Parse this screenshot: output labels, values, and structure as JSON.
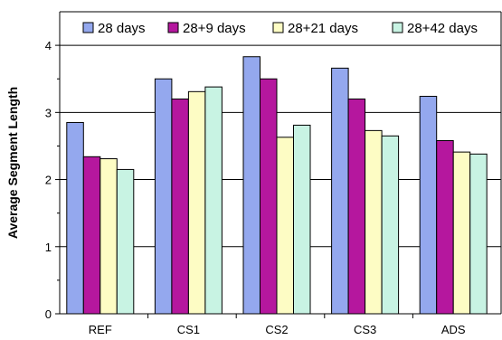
{
  "chart_data": {
    "type": "bar",
    "title": "",
    "xlabel": "",
    "ylabel": "Average Segment Length",
    "ylim": [
      0,
      4.5
    ],
    "yticks": [
      0,
      1,
      2,
      3,
      4
    ],
    "categories": [
      "REF",
      "CS1",
      "CS2",
      "CS3",
      "ADS"
    ],
    "series": [
      {
        "name": "28 days",
        "color": "#94a8ee",
        "values": [
          2.85,
          3.5,
          3.83,
          3.66,
          3.24
        ]
      },
      {
        "name": "28+9 days",
        "color": "#b5179e",
        "values": [
          2.34,
          3.2,
          3.5,
          3.2,
          2.58
        ]
      },
      {
        "name": "28+21 days",
        "color": "#fdfcc4",
        "values": [
          2.31,
          3.31,
          2.63,
          2.73,
          2.41
        ]
      },
      {
        "name": "28+42 days",
        "color": "#c8f3e3",
        "values": [
          2.15,
          3.38,
          2.81,
          2.65,
          2.38
        ]
      }
    ],
    "grid": true,
    "legend_position": "top"
  }
}
